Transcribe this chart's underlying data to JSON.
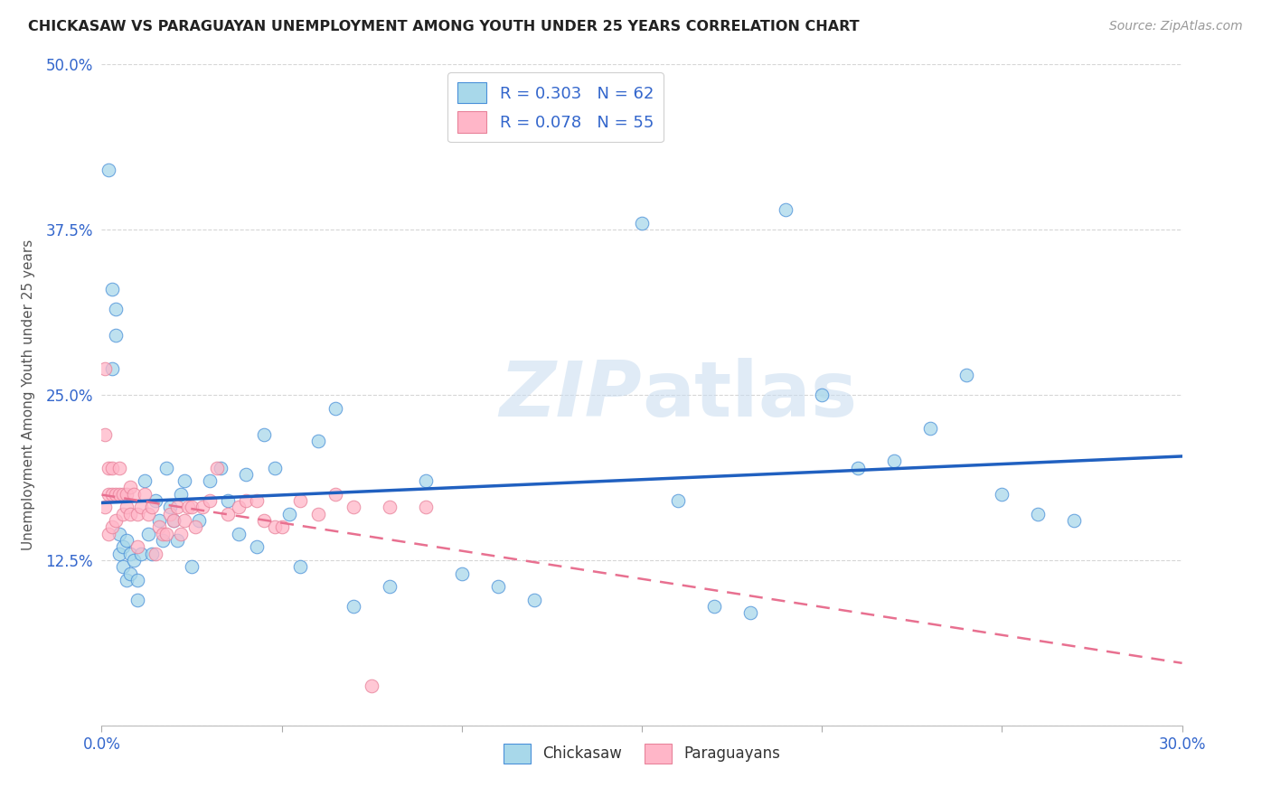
{
  "title": "CHICKASAW VS PARAGUAYAN UNEMPLOYMENT AMONG YOUTH UNDER 25 YEARS CORRELATION CHART",
  "source": "Source: ZipAtlas.com",
  "ylabel": "Unemployment Among Youth under 25 years",
  "x_min": 0.0,
  "x_max": 0.3,
  "y_min": 0.0,
  "y_max": 0.5,
  "x_ticks": [
    0.0,
    0.05,
    0.1,
    0.15,
    0.2,
    0.25,
    0.3
  ],
  "x_tick_labels": [
    "0.0%",
    "",
    "",
    "",
    "",
    "",
    "30.0%"
  ],
  "y_ticks": [
    0.0,
    0.125,
    0.25,
    0.375,
    0.5
  ],
  "y_tick_labels": [
    "",
    "12.5%",
    "25.0%",
    "37.5%",
    "50.0%"
  ],
  "legend_R1": "0.303",
  "legend_N1": "62",
  "legend_R2": "0.078",
  "legend_N2": "55",
  "color_chickasaw_fill": "#A8D8EA",
  "color_chickasaw_edge": "#4A90D9",
  "color_paraguayan_fill": "#FFB6C8",
  "color_paraguayan_edge": "#E8829A",
  "color_line_chickasaw": "#2060C0",
  "color_line_paraguayan": "#E87090",
  "watermark_zip": "ZIP",
  "watermark_atlas": "atlas",
  "chickasaw_x": [
    0.002,
    0.003,
    0.003,
    0.004,
    0.004,
    0.005,
    0.005,
    0.006,
    0.006,
    0.007,
    0.007,
    0.008,
    0.008,
    0.009,
    0.01,
    0.01,
    0.011,
    0.012,
    0.013,
    0.014,
    0.015,
    0.016,
    0.017,
    0.018,
    0.019,
    0.02,
    0.021,
    0.022,
    0.023,
    0.025,
    0.027,
    0.03,
    0.033,
    0.035,
    0.038,
    0.04,
    0.043,
    0.045,
    0.048,
    0.052,
    0.055,
    0.06,
    0.065,
    0.07,
    0.08,
    0.09,
    0.1,
    0.11,
    0.12,
    0.15,
    0.16,
    0.17,
    0.18,
    0.19,
    0.2,
    0.21,
    0.22,
    0.23,
    0.24,
    0.25,
    0.26,
    0.27
  ],
  "chickasaw_y": [
    0.42,
    0.33,
    0.27,
    0.315,
    0.295,
    0.145,
    0.13,
    0.135,
    0.12,
    0.14,
    0.11,
    0.13,
    0.115,
    0.125,
    0.11,
    0.095,
    0.13,
    0.185,
    0.145,
    0.13,
    0.17,
    0.155,
    0.14,
    0.195,
    0.165,
    0.155,
    0.14,
    0.175,
    0.185,
    0.12,
    0.155,
    0.185,
    0.195,
    0.17,
    0.145,
    0.19,
    0.135,
    0.22,
    0.195,
    0.16,
    0.12,
    0.215,
    0.24,
    0.09,
    0.105,
    0.185,
    0.115,
    0.105,
    0.095,
    0.38,
    0.17,
    0.09,
    0.085,
    0.39,
    0.25,
    0.195,
    0.2,
    0.225,
    0.265,
    0.175,
    0.16,
    0.155
  ],
  "paraguayan_x": [
    0.001,
    0.001,
    0.001,
    0.002,
    0.002,
    0.002,
    0.003,
    0.003,
    0.003,
    0.004,
    0.004,
    0.005,
    0.005,
    0.006,
    0.006,
    0.007,
    0.007,
    0.008,
    0.008,
    0.009,
    0.01,
    0.01,
    0.011,
    0.012,
    0.013,
    0.014,
    0.015,
    0.016,
    0.017,
    0.018,
    0.019,
    0.02,
    0.021,
    0.022,
    0.023,
    0.024,
    0.025,
    0.026,
    0.028,
    0.03,
    0.032,
    0.035,
    0.038,
    0.04,
    0.043,
    0.045,
    0.048,
    0.05,
    0.055,
    0.06,
    0.065,
    0.07,
    0.075,
    0.08,
    0.09
  ],
  "paraguayan_y": [
    0.27,
    0.22,
    0.165,
    0.195,
    0.175,
    0.145,
    0.195,
    0.175,
    0.15,
    0.175,
    0.155,
    0.195,
    0.175,
    0.175,
    0.16,
    0.175,
    0.165,
    0.18,
    0.16,
    0.175,
    0.16,
    0.135,
    0.165,
    0.175,
    0.16,
    0.165,
    0.13,
    0.15,
    0.145,
    0.145,
    0.16,
    0.155,
    0.165,
    0.145,
    0.155,
    0.165,
    0.165,
    0.15,
    0.165,
    0.17,
    0.195,
    0.16,
    0.165,
    0.17,
    0.17,
    0.155,
    0.15,
    0.15,
    0.17,
    0.16,
    0.175,
    0.165,
    0.03,
    0.165,
    0.165
  ]
}
